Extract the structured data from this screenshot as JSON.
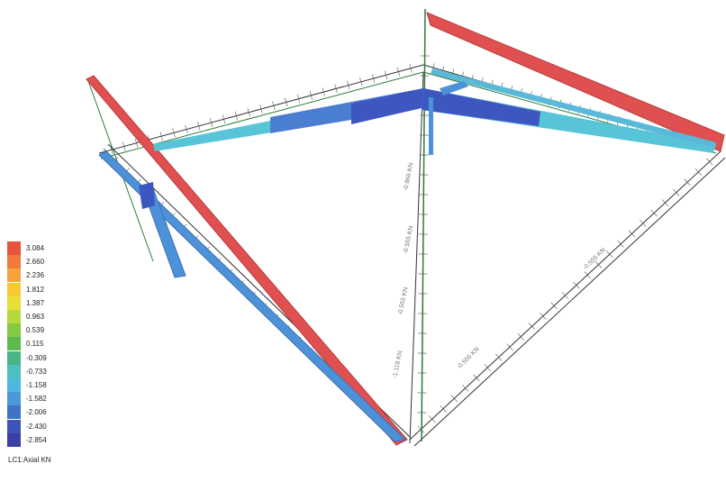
{
  "legend": {
    "title": "LC1:Axial KN",
    "entries": [
      {
        "value": "3.084",
        "color": "#e8533f"
      },
      {
        "value": "2.660",
        "color": "#ef7a3a"
      },
      {
        "value": "2.236",
        "color": "#f5a33a"
      },
      {
        "value": "1.812",
        "color": "#f6c833"
      },
      {
        "value": "1.387",
        "color": "#e7de37"
      },
      {
        "value": "0.963",
        "color": "#b7d83c"
      },
      {
        "value": "0.539",
        "color": "#85c943"
      },
      {
        "value": "0.115",
        "color": "#5db94e"
      },
      {
        "value": "-0.309",
        "color": "#49b486"
      },
      {
        "value": "-0.733",
        "color": "#4cbfc0"
      },
      {
        "value": "-1.158",
        "color": "#4fb8df"
      },
      {
        "value": "-1.582",
        "color": "#4a98d8"
      },
      {
        "value": "-2.006",
        "color": "#3f73c8"
      },
      {
        "value": "-2.430",
        "color": "#3c55b8"
      },
      {
        "value": "-2.854",
        "color": "#3a3fa6"
      }
    ]
  },
  "dimension_labels": [
    "-0.866 KN",
    "-0.555 KN",
    "-0.555 KN",
    "-1.118 KN",
    "-0.555 KN",
    "-0.555 KN"
  ],
  "member_colors": {
    "tension": "#e05050",
    "compression_strong": "#3d56c0",
    "compression_mid": "#4d92d8",
    "compression_light": "#58c4d8",
    "wire": "#2a7a3a",
    "line": "#333333"
  }
}
